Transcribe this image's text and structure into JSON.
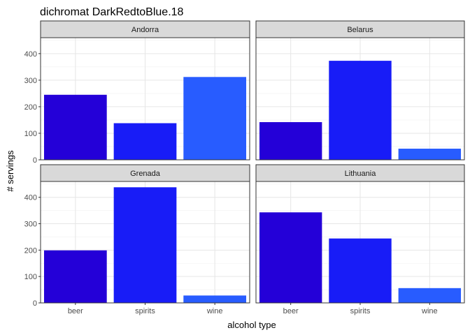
{
  "chart_data": {
    "type": "bar",
    "title": "dichromat DarkRedtoBlue.18",
    "xlabel": "alcohol type",
    "ylabel": "# servings",
    "categories": [
      "beer",
      "spirits",
      "wine"
    ],
    "ylim": [
      0,
      460
    ],
    "yticks": [
      0,
      100,
      200,
      300,
      400
    ],
    "grid": true,
    "colors": {
      "beer": "#2400d8",
      "spirits": "#181cf7",
      "wine": "#285cff"
    },
    "facets": [
      {
        "name": "Andorra",
        "values": [
          245,
          138,
          312
        ]
      },
      {
        "name": "Belarus",
        "values": [
          142,
          373,
          42
        ]
      },
      {
        "name": "Grenada",
        "values": [
          199,
          438,
          28
        ]
      },
      {
        "name": "Lithuania",
        "values": [
          343,
          244,
          56
        ]
      }
    ]
  }
}
